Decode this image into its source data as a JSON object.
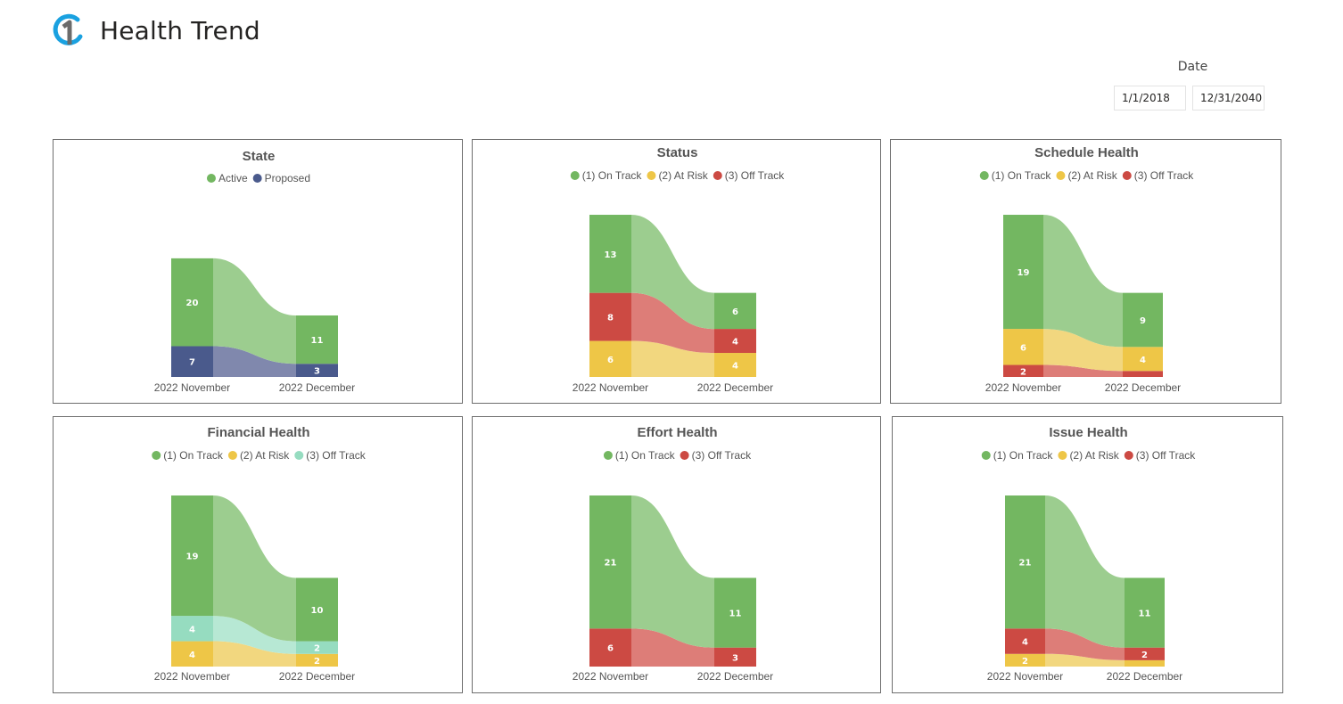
{
  "page": {
    "title": "Health Trend"
  },
  "date_filter": {
    "label": "Date",
    "start": "1/1/2018",
    "end": "12/31/2040"
  },
  "chart_data": [
    {
      "type": "ribbon",
      "title": "State",
      "categories": [
        "2022 November",
        "2022 December"
      ],
      "series": [
        {
          "name": "Proposed",
          "color": "#4a5a8c",
          "ribbon": "#8088ad",
          "values": [
            7,
            3
          ]
        },
        {
          "name": "Active",
          "color": "#73b761",
          "ribbon": "#9ccd8f",
          "values": [
            20,
            11
          ]
        }
      ],
      "legend": [
        "Active",
        "Proposed"
      ],
      "legend_colors": [
        "#73b761",
        "#4a5a8c"
      ],
      "legend_position": "top-center"
    },
    {
      "type": "ribbon",
      "title": "Status",
      "categories": [
        "2022 November",
        "2022 December"
      ],
      "series": [
        {
          "name": "(2) At Risk",
          "color": "#eec647",
          "ribbon": "#f2d77f",
          "values": [
            6,
            4
          ]
        },
        {
          "name": "(3) Off Track",
          "color": "#cc4a43",
          "ribbon": "#dd7d78",
          "values": [
            8,
            4
          ]
        },
        {
          "name": "(1) On Track",
          "color": "#73b761",
          "ribbon": "#9ccd8f",
          "values": [
            13,
            6
          ]
        }
      ],
      "legend": [
        "(1) On Track",
        "(2) At Risk",
        "(3) Off Track"
      ],
      "legend_colors": [
        "#73b761",
        "#eec647",
        "#cc4a43"
      ],
      "legend_position": "top-center"
    },
    {
      "type": "ribbon",
      "title": "Schedule Health",
      "categories": [
        "2022 November",
        "2022 December"
      ],
      "series": [
        {
          "name": "(3) Off Track",
          "color": "#cc4a43",
          "ribbon": "#dd7d78",
          "values": [
            2,
            1
          ]
        },
        {
          "name": "(2) At Risk",
          "color": "#eec647",
          "ribbon": "#f2d77f",
          "values": [
            6,
            4
          ]
        },
        {
          "name": "(1) On Track",
          "color": "#73b761",
          "ribbon": "#9ccd8f",
          "values": [
            19,
            9
          ]
        }
      ],
      "legend": [
        "(1) On Track",
        "(2) At Risk",
        "(3) Off Track"
      ],
      "legend_colors": [
        "#73b761",
        "#eec647",
        "#cc4a43"
      ],
      "legend_position": "top-center"
    },
    {
      "type": "ribbon",
      "title": "Financial Health",
      "categories": [
        "2022 November",
        "2022 December"
      ],
      "series": [
        {
          "name": "(2) At Risk",
          "color": "#eec647",
          "ribbon": "#f2d77f",
          "values": [
            4,
            2
          ]
        },
        {
          "name": "(3) Off Track",
          "color": "#96dcc0",
          "ribbon": "#b7e8d4",
          "values": [
            4,
            2
          ]
        },
        {
          "name": "(1) On Track",
          "color": "#73b761",
          "ribbon": "#9ccd8f",
          "values": [
            19,
            10
          ]
        }
      ],
      "legend": [
        "(1) On Track",
        "(2) At Risk",
        "(3) Off Track"
      ],
      "legend_colors": [
        "#73b761",
        "#eec647",
        "#96dcc0"
      ],
      "legend_position": "top-center"
    },
    {
      "type": "ribbon",
      "title": "Effort Health",
      "categories": [
        "2022 November",
        "2022 December"
      ],
      "series": [
        {
          "name": "(3) Off Track",
          "color": "#cc4a43",
          "ribbon": "#dd7d78",
          "values": [
            6,
            3
          ]
        },
        {
          "name": "(1) On Track",
          "color": "#73b761",
          "ribbon": "#9ccd8f",
          "values": [
            21,
            11
          ]
        }
      ],
      "legend": [
        "(1) On Track",
        "(3) Off Track"
      ],
      "legend_colors": [
        "#73b761",
        "#cc4a43"
      ],
      "legend_position": "top-center"
    },
    {
      "type": "ribbon",
      "title": "Issue Health",
      "categories": [
        "2022 November",
        "2022 December"
      ],
      "series": [
        {
          "name": "(2) At Risk",
          "color": "#eec647",
          "ribbon": "#f2d77f",
          "values": [
            2,
            1
          ]
        },
        {
          "name": "(3) Off Track",
          "color": "#cc4a43",
          "ribbon": "#dd7d78",
          "values": [
            4,
            2
          ]
        },
        {
          "name": "(1) On Track",
          "color": "#73b761",
          "ribbon": "#9ccd8f",
          "values": [
            21,
            11
          ]
        }
      ],
      "legend": [
        "(1) On Track",
        "(2) At Risk",
        "(3) Off Track"
      ],
      "legend_colors": [
        "#73b761",
        "#eec647",
        "#cc4a43"
      ],
      "legend_position": "top-center"
    }
  ]
}
